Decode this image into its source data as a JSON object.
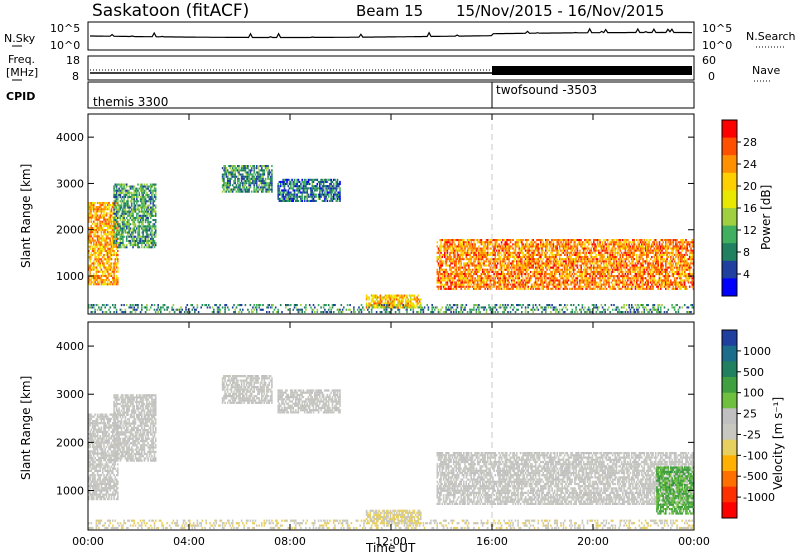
{
  "header": {
    "station": "Saskatoon (fitACF)",
    "beam": "Beam 15",
    "dates": "15/Nov/2015 - 16/Nov/2015"
  },
  "summary": {
    "nsky_label": "N.Sky",
    "nsearch_label": "N.Search",
    "nsky_ticks": [
      "10^5",
      "10^0"
    ],
    "nsearch_ticks": [
      "10^5",
      "10^0"
    ],
    "freq_label_1": "Freq.",
    "freq_label_2": "[MHz]",
    "freq_ticks": [
      "18",
      "8"
    ],
    "nave_label": "Nave",
    "nave_ticks": [
      "60",
      "0"
    ],
    "cpid_label": "CPID",
    "cpid_entries": [
      "themis 3300",
      "twofsound -3503"
    ]
  },
  "panels": {
    "ylabel": "Slant Range [km]",
    "yticks": [
      "4000",
      "3000",
      "2000",
      "1000"
    ],
    "xticks": [
      "00:00",
      "04:00",
      "08:00",
      "12:00",
      "16:00",
      "20:00",
      "00:00"
    ],
    "xlabel": "Time UT"
  },
  "power_scale": {
    "label": "Power [dB]",
    "ticks": [
      "28",
      "24",
      "20",
      "16",
      "12",
      "8",
      "4"
    ],
    "colors": [
      "#ff0000",
      "#ff5000",
      "#ff9000",
      "#ffd000",
      "#e8e800",
      "#a0d040",
      "#40b060",
      "#208060",
      "#2040a0",
      "#0000ff"
    ]
  },
  "velocity_scale": {
    "label": "Velocity [m s⁻¹]",
    "ticks": [
      "1000",
      "500",
      "100",
      "25",
      "-25",
      "-100",
      "-500",
      "-1000"
    ],
    "colors": [
      "#2040a0",
      "#1c6c8c",
      "#208060",
      "#40a040",
      "#70c040",
      "#c0c0c0",
      "#c8c8c0",
      "#e8d060",
      "#ffb000",
      "#ff7000",
      "#ff3000",
      "#ff0000"
    ]
  },
  "chart_data": [
    {
      "type": "heatmap",
      "title": "Power",
      "xlabel": "Time UT",
      "ylabel": "Slant Range [km]",
      "xlim": [
        "00:00",
        "24:00"
      ],
      "ylim": [
        180,
        4500
      ],
      "clabel": "Power [dB]",
      "clim": [
        0,
        30
      ],
      "regions": [
        {
          "t0": 0.0,
          "t1": 1.2,
          "r0": 800,
          "r1": 2600,
          "level": 22
        },
        {
          "t0": 1.0,
          "t1": 2.7,
          "r0": 1600,
          "r1": 3000,
          "level": 9
        },
        {
          "t0": 5.3,
          "t1": 7.3,
          "r0": 2800,
          "r1": 3400,
          "level": 8
        },
        {
          "t0": 7.5,
          "t1": 10.0,
          "r0": 2600,
          "r1": 3100,
          "level": 6
        },
        {
          "t0": 11.0,
          "t1": 13.2,
          "r0": 300,
          "r1": 600,
          "level": 20
        },
        {
          "t0": 13.8,
          "t1": 24.0,
          "r0": 700,
          "r1": 1800,
          "level": 24
        },
        {
          "t0": 0.0,
          "t1": 24.0,
          "r0": 200,
          "r1": 400,
          "level": 8
        }
      ]
    },
    {
      "type": "heatmap",
      "title": "Velocity",
      "xlabel": "Time UT",
      "ylabel": "Slant Range [km]",
      "xlim": [
        "00:00",
        "24:00"
      ],
      "ylim": [
        180,
        4500
      ],
      "clabel": "Velocity [m s⁻¹]",
      "clim": [
        -1000,
        1000
      ],
      "regions": [
        {
          "t0": 0.0,
          "t1": 1.2,
          "r0": 800,
          "r1": 2600,
          "level": 0
        },
        {
          "t0": 1.0,
          "t1": 2.7,
          "r0": 1600,
          "r1": 3000,
          "level": 0
        },
        {
          "t0": 5.3,
          "t1": 7.3,
          "r0": 2800,
          "r1": 3400,
          "level": 0
        },
        {
          "t0": 7.5,
          "t1": 10.0,
          "r0": 2600,
          "r1": 3100,
          "level": 0
        },
        {
          "t0": 11.0,
          "t1": 13.2,
          "r0": 300,
          "r1": 600,
          "level": -200
        },
        {
          "t0": 13.8,
          "t1": 24.0,
          "r0": 700,
          "r1": 1800,
          "level": 0
        },
        {
          "t0": 22.5,
          "t1": 24.0,
          "r0": 500,
          "r1": 1500,
          "level": 400
        },
        {
          "t0": 0.0,
          "t1": 24.0,
          "r0": 200,
          "r1": 400,
          "level": -150
        }
      ]
    }
  ]
}
